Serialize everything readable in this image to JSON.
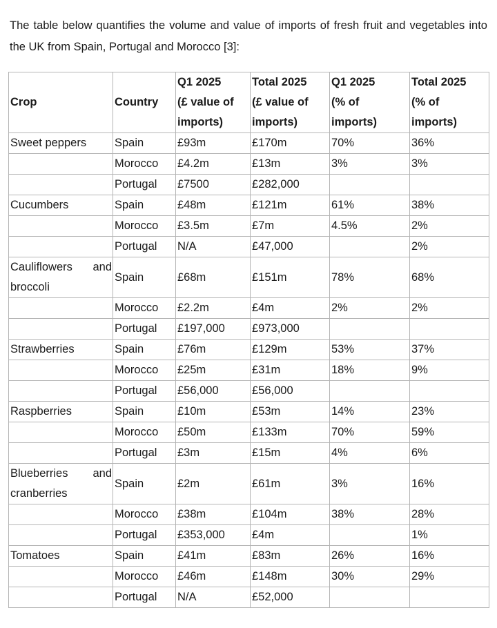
{
  "intro": {
    "text": "The table below quantifies the volume and value of imports of fresh fruit and vegetables into the UK from Spain, Portugal and Morocco [3]:"
  },
  "table": {
    "headers": [
      {
        "id": "crop",
        "lines": [
          "Crop"
        ]
      },
      {
        "id": "country",
        "lines": [
          "Country"
        ]
      },
      {
        "id": "q1-value",
        "lines": [
          "Q1 2025",
          "(£ value of",
          "imports)"
        ]
      },
      {
        "id": "total-value",
        "lines": [
          "Total 2025",
          "(£ value of",
          "imports)"
        ]
      },
      {
        "id": "q1-pct",
        "lines": [
          "Q1 2025",
          "(% of",
          "imports)"
        ]
      },
      {
        "id": "total-pct",
        "lines": [
          "Total 2025",
          "(% of",
          "imports)"
        ]
      }
    ],
    "rows": [
      {
        "crop": "Sweet peppers",
        "country": "Spain",
        "q1_value": "£93m",
        "total_value": "£170m",
        "q1_pct": "70%",
        "total_pct": "36%"
      },
      {
        "crop": "",
        "country": "Morocco",
        "q1_value": "£4.2m",
        "total_value": "£13m",
        "q1_pct": "3%",
        "total_pct": "3%"
      },
      {
        "crop": "",
        "country": "Portugal",
        "q1_value": "£7500",
        "total_value": "£282,000",
        "q1_pct": "",
        "total_pct": ""
      },
      {
        "crop": "Cucumbers",
        "country": "Spain",
        "q1_value": "£48m",
        "total_value": "£121m",
        "q1_pct": "61%",
        "total_pct": "38%"
      },
      {
        "crop": "",
        "country": "Morocco",
        "q1_value": "£3.5m",
        "total_value": "£7m",
        "q1_pct": "4.5%",
        "total_pct": "2%"
      },
      {
        "crop": "",
        "country": "Portugal",
        "q1_value": "N/A",
        "total_value": "£47,000",
        "q1_pct": "",
        "total_pct": "2%"
      },
      {
        "crop": "Cauliflowers and broccoli",
        "country": "Spain",
        "q1_value": "£68m",
        "total_value": "£151m",
        "q1_pct": "78%",
        "total_pct": "68%"
      },
      {
        "crop": "",
        "country": "Morocco",
        "q1_value": "£2.2m",
        "total_value": "£4m",
        "q1_pct": "2%",
        "total_pct": "2%"
      },
      {
        "crop": "",
        "country": "Portugal",
        "q1_value": "£197,000",
        "total_value": "£973,000",
        "q1_pct": "",
        "total_pct": ""
      },
      {
        "crop": "Strawberries",
        "country": "Spain",
        "q1_value": "£76m",
        "total_value": "£129m",
        "q1_pct": "53%",
        "total_pct": "37%"
      },
      {
        "crop": "",
        "country": "Morocco",
        "q1_value": "£25m",
        "total_value": "£31m",
        "q1_pct": "18%",
        "total_pct": "9%"
      },
      {
        "crop": "",
        "country": "Portugal",
        "q1_value": "£56,000",
        "total_value": "£56,000",
        "q1_pct": "",
        "total_pct": ""
      },
      {
        "crop": "Raspberries",
        "country": "Spain",
        "q1_value": "£10m",
        "total_value": "£53m",
        "q1_pct": "14%",
        "total_pct": "23%"
      },
      {
        "crop": "",
        "country": "Morocco",
        "q1_value": "£50m",
        "total_value": "£133m",
        "q1_pct": "70%",
        "total_pct": "59%"
      },
      {
        "crop": "",
        "country": "Portugal",
        "q1_value": "£3m",
        "total_value": "£15m",
        "q1_pct": "4%",
        "total_pct": "6%"
      },
      {
        "crop": "Blueberries and cranberries",
        "country": "Spain",
        "q1_value": "£2m",
        "total_value": "£61m",
        "q1_pct": "3%",
        "total_pct": "16%"
      },
      {
        "crop": "",
        "country": "Morocco",
        "q1_value": "£38m",
        "total_value": "£104m",
        "q1_pct": "38%",
        "total_pct": "28%"
      },
      {
        "crop": "",
        "country": "Portugal",
        "q1_value": "£353,000",
        "total_value": "£4m",
        "q1_pct": "",
        "total_pct": "1%"
      },
      {
        "crop": "Tomatoes",
        "country": "Spain",
        "q1_value": "£41m",
        "total_value": "£83m",
        "q1_pct": "26%",
        "total_pct": "16%"
      },
      {
        "crop": "",
        "country": "Morocco",
        "q1_value": "£46m",
        "total_value": "£148m",
        "q1_pct": "30%",
        "total_pct": "29%"
      },
      {
        "crop": "",
        "country": "Portugal",
        "q1_value": "N/A",
        "total_value": "£52,000",
        "q1_pct": "",
        "total_pct": ""
      }
    ]
  }
}
